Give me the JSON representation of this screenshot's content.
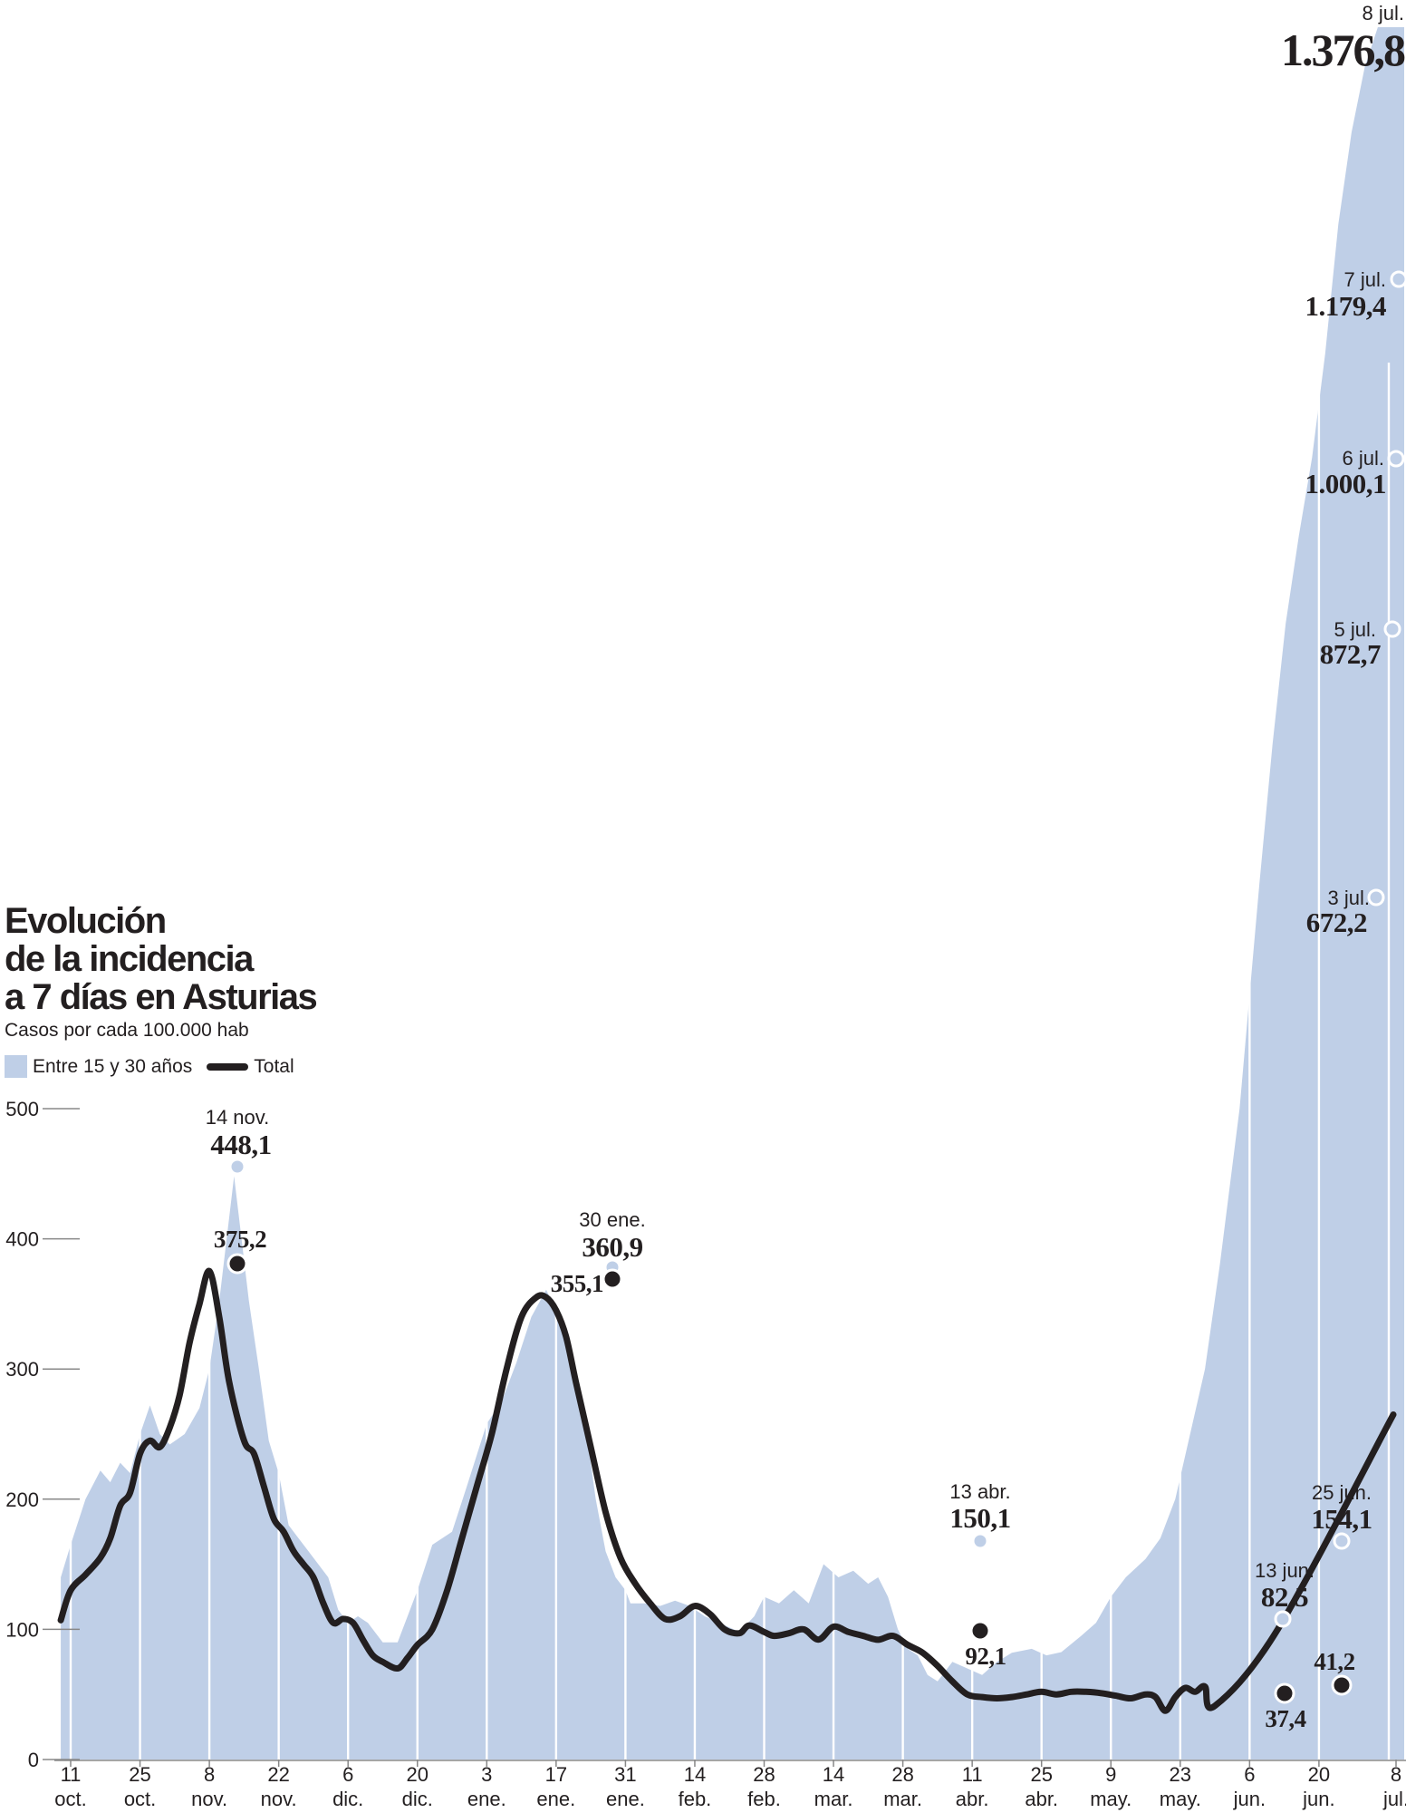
{
  "title_lines": [
    "Evolución",
    "de la incidencia",
    "a 7 días en Asturias"
  ],
  "subtitle": "Casos por cada 100.000 hab",
  "legend": {
    "area_label": "Entre 15 y 30 años",
    "line_label": "Total"
  },
  "colors": {
    "area": "#bfcfe7",
    "line": "#231f20",
    "text": "#231f20",
    "axis": "#888888",
    "gridline": "#ffffff"
  },
  "chart_data": {
    "type": "area",
    "title": "Evolución de la incidencia a 7 días en Asturias",
    "subtitle": "Casos por cada 100.000 hab",
    "y_ticks": [
      0,
      100,
      200,
      300,
      400,
      500
    ],
    "ylim": [
      0,
      1400
    ],
    "x_ticks": [
      {
        "day": "11",
        "month": "oct."
      },
      {
        "day": "25",
        "month": "oct."
      },
      {
        "day": "8",
        "month": "nov."
      },
      {
        "day": "22",
        "month": "nov."
      },
      {
        "day": "6",
        "month": "dic."
      },
      {
        "day": "20",
        "month": "dic."
      },
      {
        "day": "3",
        "month": "ene."
      },
      {
        "day": "17",
        "month": "ene."
      },
      {
        "day": "31",
        "month": "ene."
      },
      {
        "day": "14",
        "month": "feb."
      },
      {
        "day": "28",
        "month": "feb."
      },
      {
        "day": "14",
        "month": "mar."
      },
      {
        "day": "28",
        "month": "mar."
      },
      {
        "day": "11",
        "month": "abr."
      },
      {
        "day": "25",
        "month": "abr."
      },
      {
        "day": "9",
        "month": "may."
      },
      {
        "day": "23",
        "month": "may."
      },
      {
        "day": "6",
        "month": "jun."
      },
      {
        "day": "20",
        "month": "jun."
      },
      {
        "day": "8",
        "month": "jul."
      }
    ],
    "legend_position": "top-left",
    "series": [
      {
        "name": "Entre 15 y 30 años",
        "type": "area",
        "x_days_from_11_oct": [
          -2,
          0,
          3,
          6,
          8,
          10,
          12,
          14,
          16,
          18,
          20,
          23,
          26,
          28,
          30,
          33,
          36,
          38,
          40,
          42,
          44,
          46,
          48,
          50,
          52,
          54,
          56,
          58,
          60,
          63,
          66,
          70,
          73,
          77,
          80,
          84,
          87,
          90,
          93,
          96,
          98,
          101,
          104,
          106,
          108,
          110,
          112,
          113,
          116,
          119,
          122,
          125,
          128,
          131,
          135,
          138,
          140,
          143,
          146,
          149,
          152,
          155,
          158,
          161,
          163,
          165,
          167,
          169,
          171,
          173,
          175,
          178,
          181,
          184,
          187,
          190,
          194,
          197,
          200,
          204,
          207,
          210,
          213,
          217,
          220,
          223,
          226,
          229,
          232,
          235,
          238,
          240,
          242,
          244,
          246,
          248,
          250,
          252,
          254,
          256,
          258,
          260,
          262,
          264,
          266,
          268,
          270
        ],
        "values": [
          140,
          165,
          200,
          222,
          213,
          228,
          220,
          250,
          272,
          250,
          242,
          250,
          270,
          300,
          352,
          448.1,
          352,
          300,
          245,
          220,
          180,
          170,
          160,
          150,
          140,
          115,
          105,
          110,
          105,
          90,
          90,
          130,
          165,
          175,
          210,
          258,
          275,
          305,
          340,
          360.9,
          345,
          305,
          255,
          200,
          160,
          140,
          130,
          120,
          120,
          118,
          122,
          118,
          110,
          105,
          98,
          110,
          125,
          120,
          130,
          120,
          150.1,
          140,
          145,
          135,
          140,
          125,
          100,
          85,
          80,
          65,
          60,
          75,
          70,
          65,
          75,
          82,
          85,
          80,
          82.5,
          95,
          105,
          125,
          140,
          154.1,
          170,
          200,
          250,
          300,
          380,
          500,
          672.2,
          780,
          872.7,
          940,
          1000.1,
          1080,
          1179.4,
          1250,
          1300,
          1376.8,
          1376.8,
          1376.8,
          1376.8,
          1376.8,
          1376.8,
          1376.8,
          1376.8
        ]
      },
      {
        "name": "Total",
        "type": "line",
        "x_days_from_11_oct": [
          -2,
          0,
          3,
          6,
          8,
          10,
          12,
          14,
          16,
          18,
          20,
          22,
          24,
          26,
          28,
          30,
          32,
          35,
          37,
          39,
          41,
          43,
          45,
          47,
          49,
          51,
          53,
          55,
          57,
          59,
          61,
          63,
          66,
          68,
          70,
          73,
          76,
          79,
          82,
          85,
          88,
          91,
          94,
          96,
          98,
          100,
          102,
          105,
          108,
          111,
          114,
          117,
          120,
          123,
          126,
          129,
          132,
          135,
          137,
          140,
          142,
          145,
          148,
          151,
          154,
          157,
          160,
          163,
          166,
          169,
          172,
          175,
          178,
          181,
          184,
          187,
          190,
          193,
          196,
          199,
          202,
          205,
          208,
          211,
          214,
          217,
          219,
          221,
          223,
          225,
          227,
          229,
          231,
          233,
          235
        ],
        "values": [
          107,
          130,
          142,
          155,
          170,
          195,
          205,
          235,
          245,
          240,
          255,
          280,
          320,
          350,
          375.2,
          340,
          290,
          245,
          235,
          210,
          185,
          175,
          160,
          150,
          140,
          120,
          105,
          108,
          105,
          92,
          80,
          75,
          70,
          78,
          88,
          100,
          130,
          170,
          210,
          250,
          300,
          340,
          355.1,
          355,
          345,
          325,
          290,
          240,
          190,
          155,
          135,
          120,
          108,
          110,
          118,
          112,
          100,
          97,
          103,
          98,
          95,
          97,
          100,
          92.1,
          102,
          98,
          95,
          92,
          95,
          88,
          82,
          72,
          60,
          50,
          48,
          47,
          48,
          50,
          52,
          50,
          52,
          52,
          51,
          49,
          47,
          50,
          48,
          37.4,
          48,
          55,
          52,
          56,
          41.2,
          100,
          265
        ]
      }
    ],
    "annotations": [
      {
        "series": "Entre 15 y 30 años",
        "date": "14 nov.",
        "value": "448,1"
      },
      {
        "series": "Total",
        "date": "",
        "value": "375,2"
      },
      {
        "series": "Entre 15 y 30 años",
        "date": "30 ene.",
        "value": "360,9"
      },
      {
        "series": "Total",
        "date": "",
        "value": "355,1"
      },
      {
        "series": "Entre 15 y 30 años",
        "date": "13 abr.",
        "value": "150,1"
      },
      {
        "series": "Total",
        "date": "",
        "value": "92,1"
      },
      {
        "series": "Entre 15 y 30 años",
        "date": "13 jun.",
        "value": "82,5"
      },
      {
        "series": "Total",
        "date": "",
        "value": "37,4"
      },
      {
        "series": "Entre 15 y 30 años",
        "date": "25 jun.",
        "value": "154,1"
      },
      {
        "series": "Total",
        "date": "",
        "value": "41,2"
      },
      {
        "series": "Entre 15 y 30 años",
        "date": "3 jul.",
        "value": "672,2"
      },
      {
        "series": "Entre 15 y 30 años",
        "date": "5 jul.",
        "value": "872,7"
      },
      {
        "series": "Entre 15 y 30 años",
        "date": "6 jul.",
        "value": "1.000,1"
      },
      {
        "series": "Entre 15 y 30 años",
        "date": "7 jul.",
        "value": "1.179,4"
      },
      {
        "series": "Entre 15 y 30 años",
        "date": "8 jul.",
        "value": "1.376,8"
      }
    ]
  }
}
